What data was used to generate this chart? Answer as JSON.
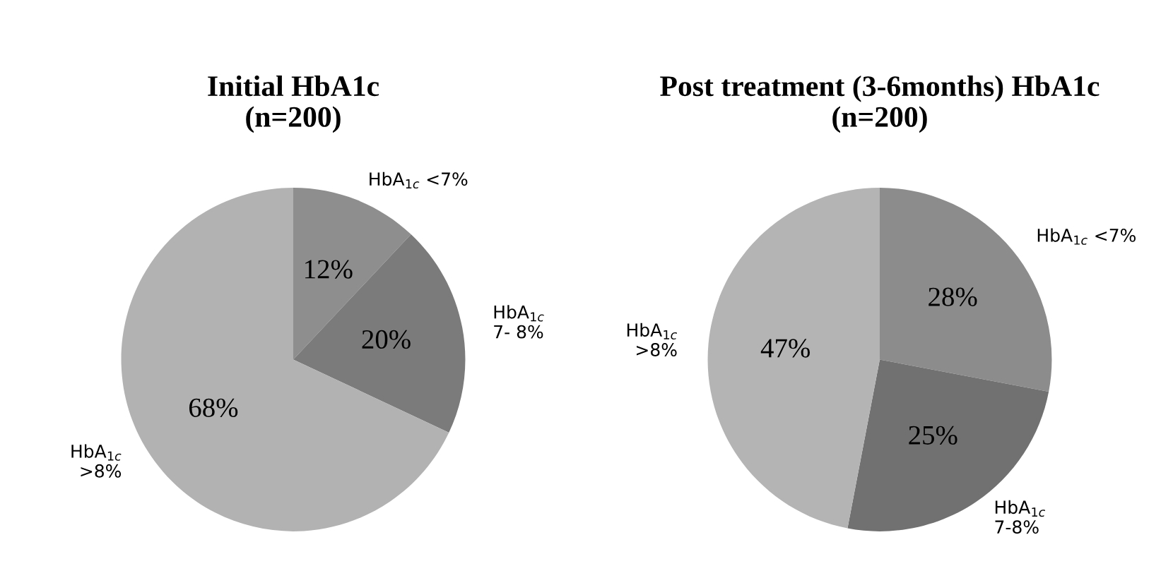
{
  "chart_data": [
    {
      "type": "pie",
      "title": "Initial HbA1c\n(n=200)",
      "categories": [
        "HbA$_{1c}$ <7%",
        "HbA$_{1c}$\n7- 8%",
        "HbA$_{1c}$\n>8%"
      ],
      "values": [
        12,
        20,
        68
      ],
      "value_labels": [
        "12%",
        "20%",
        "68%"
      ],
      "colors": [
        "#8e8e8e",
        "#7b7b7b",
        "#b2b2b2"
      ],
      "legend": false
    },
    {
      "type": "pie",
      "title": "Post treatment (3-6months) HbA1c\n(n=200)",
      "categories": [
        "HbA$_{1c}$ <7%",
        "HbA$_{1c}$\n7-8%",
        "HbA$_{1c}$\n>8%"
      ],
      "values": [
        28,
        25,
        47
      ],
      "value_labels": [
        "28%",
        "25%",
        "47%"
      ],
      "colors": [
        "#8c8c8c",
        "#717171",
        "#b4b4b4"
      ],
      "legend": false
    }
  ]
}
